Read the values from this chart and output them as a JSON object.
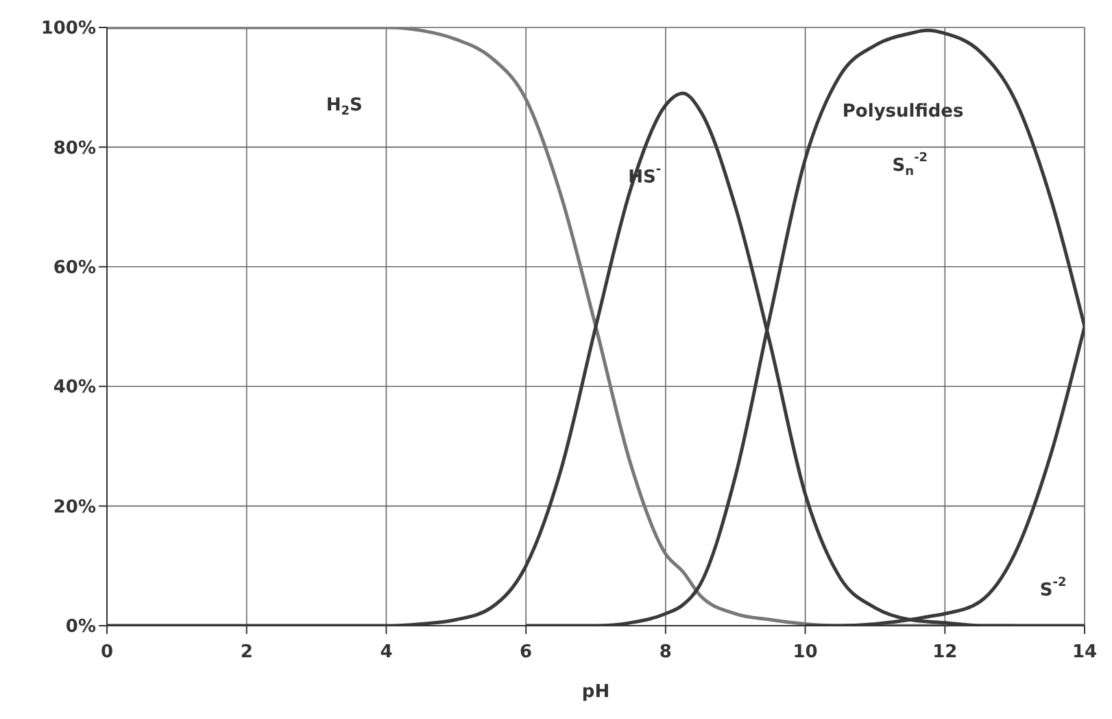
{
  "chart_data": {
    "type": "line",
    "xlabel": "pH",
    "x": [
      0,
      0.5,
      1,
      1.5,
      2,
      2.5,
      3,
      3.5,
      4,
      4.5,
      5,
      5.5,
      6,
      6.5,
      7,
      7.5,
      8,
      8.25,
      8.5,
      9,
      9.5,
      10,
      10.5,
      11,
      11.5,
      11.75,
      12,
      12.5,
      13,
      13.5,
      14
    ],
    "series": [
      {
        "color": "#787878",
        "values": [
          100,
          100,
          100,
          100,
          100,
          100,
          100,
          100,
          100,
          99.5,
          98,
          95,
          88,
          72,
          50,
          27,
          12,
          9,
          5,
          2,
          1,
          0.3,
          0,
          0,
          0,
          0,
          0,
          0,
          0,
          null,
          null
        ]
      },
      {
        "color": "#3a3a3a",
        "values": [
          0,
          0,
          0,
          0,
          0,
          0,
          0,
          0,
          0,
          0.3,
          1,
          3,
          10,
          26,
          50,
          73,
          87,
          89,
          86,
          70,
          47,
          22,
          8,
          3,
          1,
          0.7,
          0.5,
          0,
          0,
          0,
          0
        ]
      },
      {
        "color": "#3a3a3a",
        "values": [
          null,
          null,
          null,
          null,
          null,
          null,
          null,
          null,
          null,
          null,
          null,
          null,
          0,
          0,
          0,
          0.5,
          2,
          3.5,
          7,
          25,
          52,
          78,
          92,
          97,
          99,
          99.5,
          99,
          96,
          88,
          72,
          50
        ]
      },
      {
        "color": "#3a3a3a",
        "values": [
          null,
          null,
          null,
          null,
          null,
          null,
          null,
          null,
          null,
          null,
          null,
          null,
          null,
          null,
          null,
          null,
          null,
          null,
          null,
          null,
          null,
          0,
          0,
          0.3,
          1,
          1.5,
          2,
          4,
          12,
          28,
          50
        ]
      }
    ],
    "xlim": [
      0,
      14
    ],
    "xticks": [
      0,
      2,
      4,
      6,
      8,
      10,
      12,
      14
    ],
    "ylim": [
      0,
      100
    ],
    "yticks": [
      {
        "value": 0,
        "label": "0%"
      },
      {
        "value": 20,
        "label": "20%"
      },
      {
        "value": 40,
        "label": "40%"
      },
      {
        "value": 60,
        "label": "60%"
      },
      {
        "value": 80,
        "label": "80%"
      },
      {
        "value": 100,
        "label": "100%"
      }
    ],
    "grid": true,
    "annotations": [
      "H$_{2}$S",
      "HS$^{-}$",
      "Polysulfides",
      "S$_{n}$$^{-2}$",
      "S$^{-2}$"
    ]
  }
}
